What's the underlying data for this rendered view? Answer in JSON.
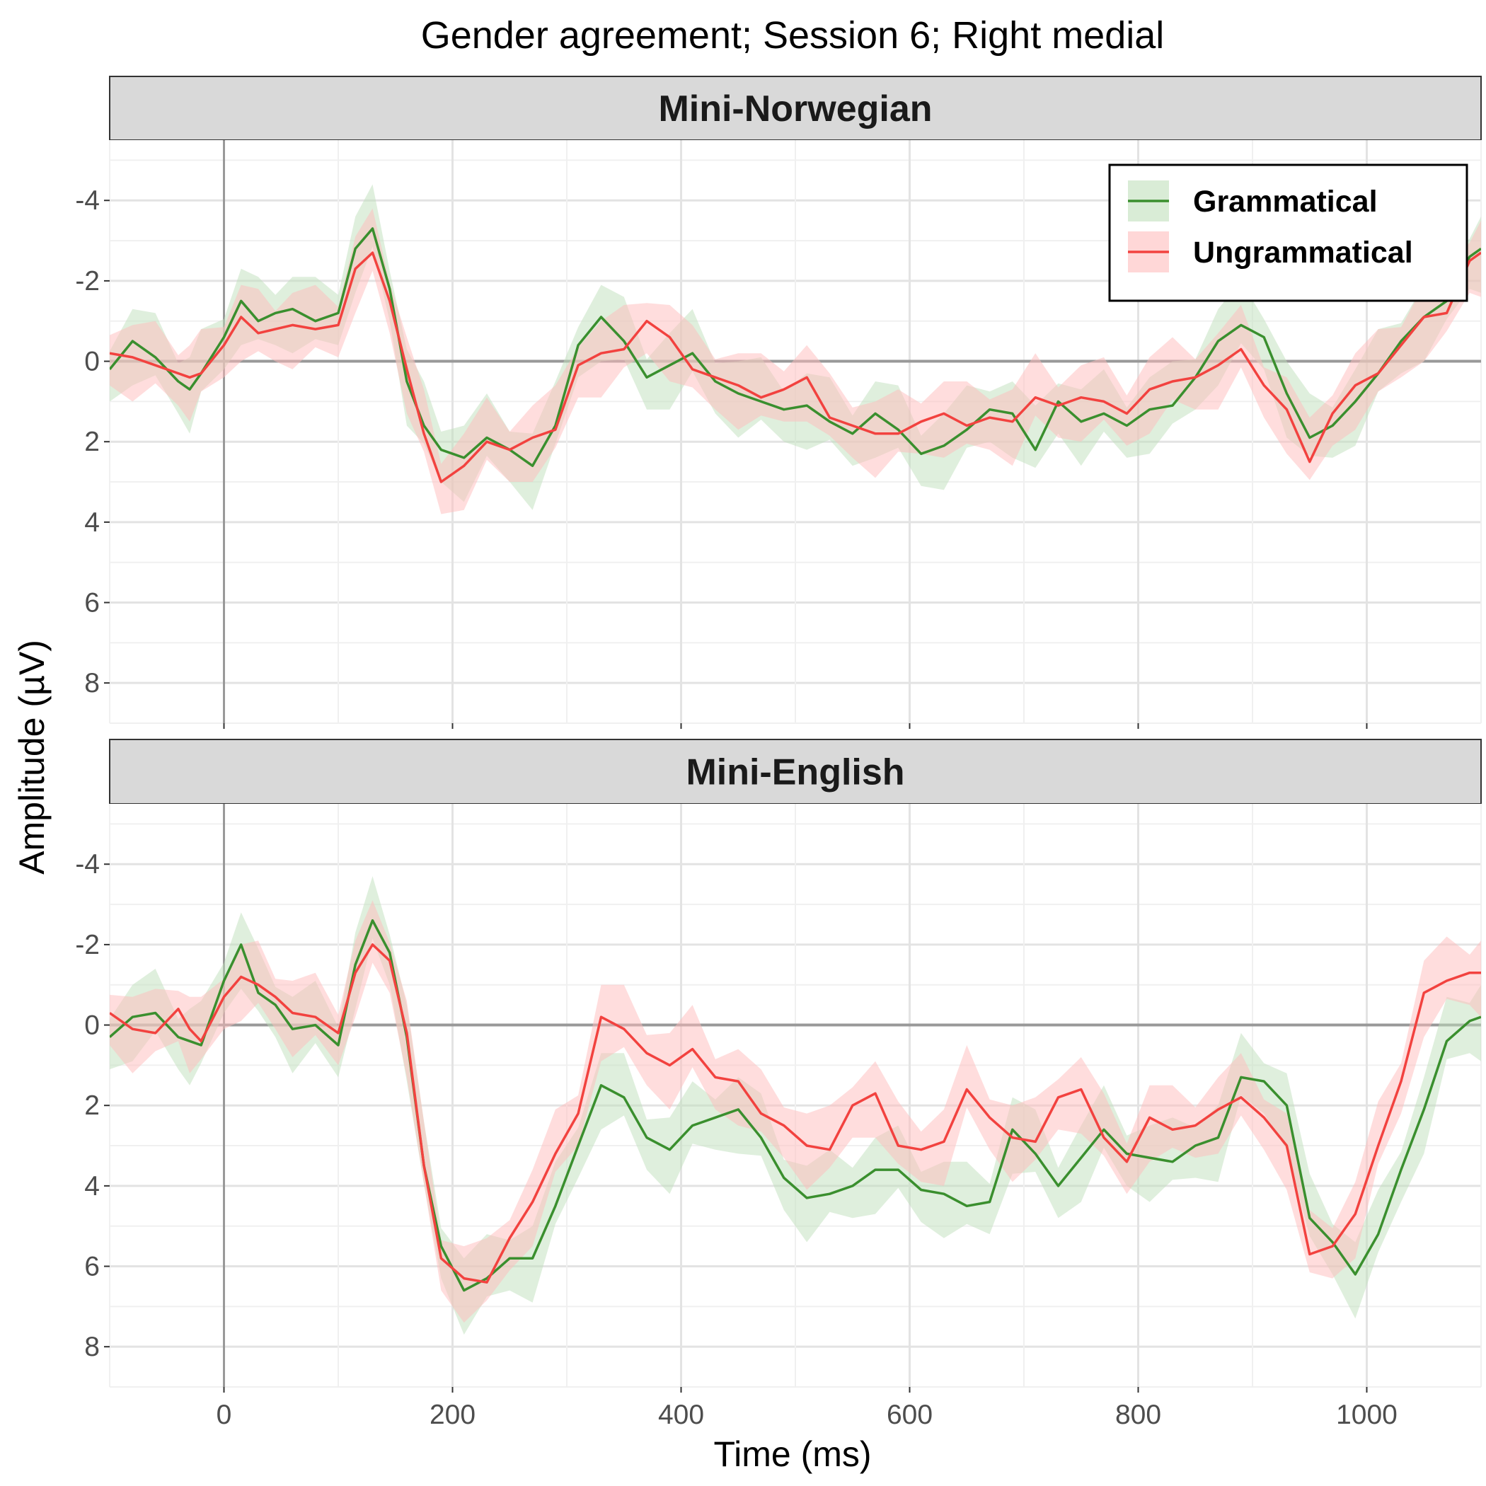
{
  "chart_data": {
    "type": "line",
    "title": "Gender agreement; Session 6; Right medial",
    "xlabel": "Time (ms)",
    "ylabel": "Amplitude (µV)",
    "xlim": [
      -100,
      1100
    ],
    "ylim": [
      -5.5,
      9
    ],
    "y_reversed": true,
    "x_ticks": [
      0,
      200,
      400,
      600,
      800,
      1000
    ],
    "y_ticks": [
      -4,
      -2,
      0,
      2,
      4,
      6,
      8
    ],
    "y_tick_labels": [
      "-4",
      "-2",
      "0",
      "2",
      "4",
      "6",
      "8"
    ],
    "grid": true,
    "legend_position": "top-right",
    "ribbons": true,
    "series_styles": [
      {
        "name": "Grammatical",
        "line_color": "#3a8f2e",
        "ribbon_color": "#bfe0bb"
      },
      {
        "name": "Ungrammatical",
        "line_color": "#f2423f",
        "ribbon_color": "#ffbcbc"
      }
    ],
    "panels": [
      {
        "strip": "Mini-Norwegian",
        "x": [
          -100,
          -80,
          -60,
          -40,
          -30,
          -20,
          0,
          15,
          30,
          45,
          60,
          80,
          100,
          115,
          130,
          145,
          160,
          175,
          190,
          210,
          230,
          250,
          270,
          290,
          310,
          330,
          350,
          370,
          390,
          410,
          430,
          450,
          470,
          490,
          510,
          530,
          550,
          570,
          590,
          610,
          630,
          650,
          670,
          690,
          710,
          730,
          750,
          770,
          790,
          810,
          830,
          850,
          870,
          890,
          910,
          930,
          950,
          970,
          990,
          1010,
          1030,
          1050,
          1070,
          1090,
          1100
        ],
        "series": [
          {
            "name": "Grammatical",
            "values": [
              0.2,
              -0.5,
              -0.1,
              0.5,
              0.7,
              0.3,
              -0.6,
              -1.5,
              -1.0,
              -1.2,
              -1.3,
              -1.0,
              -1.2,
              -2.8,
              -3.3,
              -1.8,
              0.5,
              1.6,
              2.2,
              2.4,
              1.9,
              2.2,
              2.6,
              1.6,
              -0.4,
              -1.1,
              -0.5,
              0.4,
              0.1,
              -0.2,
              0.5,
              0.8,
              1.0,
              1.2,
              1.1,
              1.5,
              1.8,
              1.3,
              1.7,
              2.3,
              2.1,
              1.7,
              1.2,
              1.3,
              2.2,
              1.0,
              1.5,
              1.3,
              1.6,
              1.2,
              1.1,
              0.4,
              -0.5,
              -0.9,
              -0.6,
              0.8,
              1.9,
              1.6,
              1.0,
              0.3,
              -0.5,
              -1.1,
              -1.5,
              -2.6,
              -2.8
            ]
          },
          {
            "name": "Ungrammatical",
            "values": [
              -0.2,
              -0.1,
              0.1,
              0.3,
              0.4,
              0.3,
              -0.4,
              -1.1,
              -0.7,
              -0.8,
              -0.9,
              -0.8,
              -0.9,
              -2.3,
              -2.7,
              -1.5,
              0.2,
              1.8,
              3.0,
              2.6,
              2.0,
              2.2,
              1.9,
              1.7,
              0.1,
              -0.2,
              -0.3,
              -1.0,
              -0.6,
              0.2,
              0.4,
              0.6,
              0.9,
              0.7,
              0.4,
              1.4,
              1.6,
              1.8,
              1.8,
              1.5,
              1.3,
              1.6,
              1.4,
              1.5,
              0.9,
              1.1,
              0.9,
              1.0,
              1.3,
              0.7,
              0.5,
              0.4,
              0.1,
              -0.3,
              0.6,
              1.2,
              2.5,
              1.3,
              0.6,
              0.3,
              -0.4,
              -1.1,
              -1.2,
              -2.5,
              -2.7
            ]
          }
        ]
      },
      {
        "strip": "Mini-English",
        "x": [
          -100,
          -80,
          -60,
          -40,
          -30,
          -20,
          0,
          15,
          30,
          45,
          60,
          80,
          100,
          115,
          130,
          145,
          160,
          175,
          190,
          210,
          230,
          250,
          270,
          290,
          310,
          330,
          350,
          370,
          390,
          410,
          430,
          450,
          470,
          490,
          510,
          530,
          550,
          570,
          590,
          610,
          630,
          650,
          670,
          690,
          710,
          730,
          750,
          770,
          790,
          810,
          830,
          850,
          870,
          890,
          910,
          930,
          950,
          970,
          990,
          1010,
          1030,
          1050,
          1070,
          1090,
          1100
        ],
        "series": [
          {
            "name": "Grammatical",
            "values": [
              0.3,
              -0.2,
              -0.3,
              0.3,
              0.4,
              0.5,
              -1.1,
              -2.0,
              -0.8,
              -0.5,
              0.1,
              0.0,
              0.5,
              -1.5,
              -2.6,
              -1.8,
              0.3,
              3.5,
              5.5,
              6.6,
              6.3,
              5.8,
              5.8,
              4.5,
              3.0,
              1.5,
              1.8,
              2.8,
              3.1,
              2.5,
              2.3,
              2.1,
              2.8,
              3.8,
              4.3,
              4.2,
              4.0,
              3.6,
              3.6,
              4.1,
              4.2,
              4.5,
              4.4,
              2.6,
              3.2,
              4.0,
              3.3,
              2.6,
              3.2,
              3.3,
              3.4,
              3.0,
              2.8,
              1.3,
              1.4,
              2.0,
              4.8,
              5.4,
              6.2,
              5.2,
              3.6,
              2.1,
              0.4,
              -0.1,
              -0.2
            ]
          },
          {
            "name": "Ungrammatical",
            "values": [
              -0.3,
              0.1,
              0.2,
              -0.4,
              0.1,
              0.4,
              -0.7,
              -1.2,
              -1.0,
              -0.7,
              -0.3,
              -0.2,
              0.2,
              -1.3,
              -2.0,
              -1.6,
              0.2,
              3.5,
              5.8,
              6.3,
              6.4,
              5.3,
              4.4,
              3.2,
              2.2,
              -0.2,
              0.1,
              0.7,
              1.0,
              0.6,
              1.3,
              1.4,
              2.2,
              2.5,
              3.0,
              3.1,
              2.0,
              1.7,
              3.0,
              3.1,
              2.9,
              1.6,
              2.3,
              2.8,
              2.9,
              1.8,
              1.6,
              2.8,
              3.4,
              2.3,
              2.6,
              2.5,
              2.1,
              1.8,
              2.3,
              3.0,
              5.7,
              5.5,
              4.7,
              3.0,
              1.4,
              -0.8,
              -1.1,
              -1.3,
              -1.3
            ]
          }
        ]
      }
    ]
  }
}
